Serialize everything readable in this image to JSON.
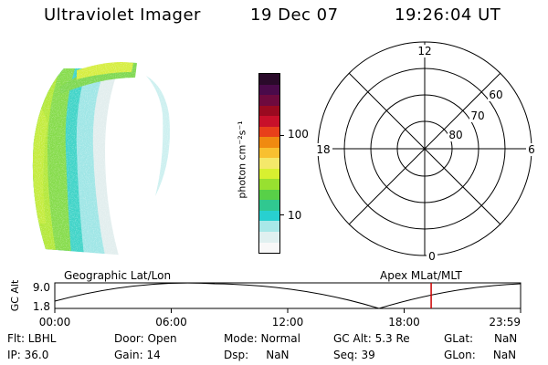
{
  "header": {
    "title": "Ultraviolet Imager",
    "date": "19 Dec 07",
    "time": "19:26:04 UT"
  },
  "colorbar": {
    "unit_label": "photon cm⁻²s⁻¹",
    "ticks": [
      "100",
      "10"
    ],
    "colors": [
      "#2a0a2a",
      "#4a0a4a",
      "#6e0a3e",
      "#9a0a20",
      "#c8102a",
      "#e8401a",
      "#f08a10",
      "#f8c030",
      "#f4e86a",
      "#d8f030",
      "#98e030",
      "#58d048",
      "#30c890",
      "#28d0d0",
      "#a8e8e8",
      "#e0f0f0",
      "#f8f8f8"
    ]
  },
  "polar": {
    "mlt_labels": {
      "top": "12",
      "left": "18",
      "right": "6",
      "bottom": "0"
    },
    "lat_labels": [
      "60",
      "70",
      "80"
    ]
  },
  "timeline": {
    "left_label": "Geographic Lat/Lon",
    "right_label": "Apex  MLat/MLT",
    "y_axis_title": "GC Alt",
    "y_ticks": [
      "9.0",
      "1.8"
    ],
    "x_ticks": [
      "00:00",
      "06:00",
      "12:00",
      "18:00",
      "23:59"
    ],
    "current_time_fraction": 0.808,
    "marker_color": "#cc0000"
  },
  "status": {
    "flt": "Flt: LBHL",
    "ip": "IP: 36.0",
    "door": "Door: Open",
    "gain": "Gain: 14",
    "mode": "Mode: Normal",
    "dsp": "Dsp:     NaN",
    "gc_alt": "GC Alt: 5.3 Re",
    "seq": "Seq: 39",
    "glat": "GLat:      NaN",
    "glon": "GLon:     NaN"
  }
}
